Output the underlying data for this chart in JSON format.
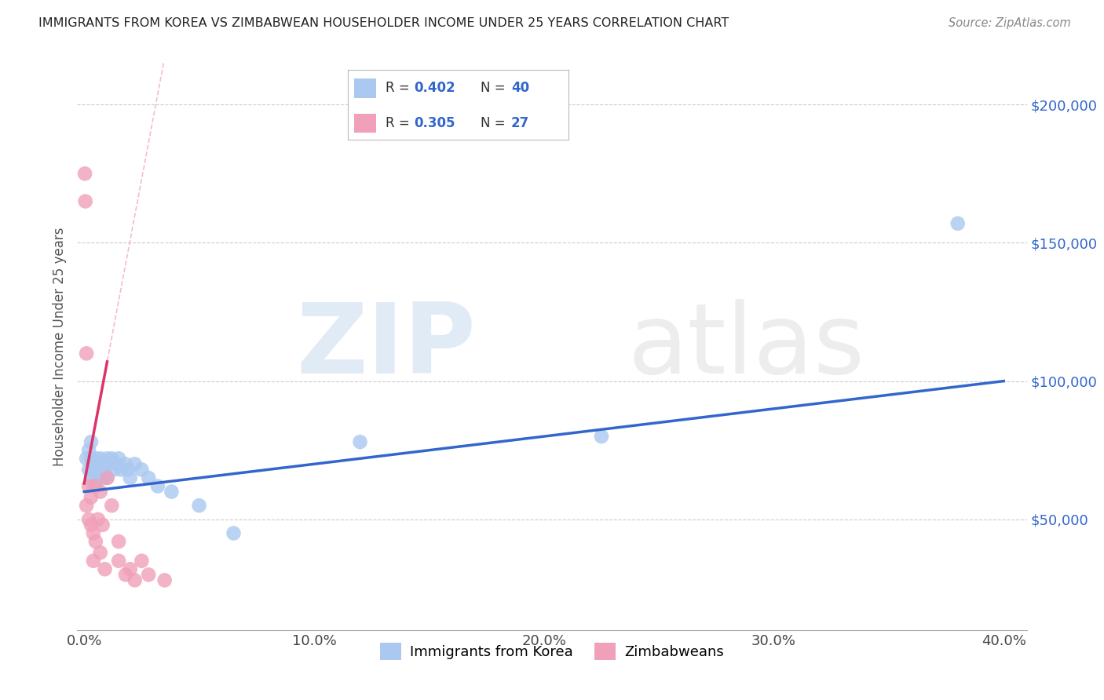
{
  "title": "IMMIGRANTS FROM KOREA VS ZIMBABWEAN HOUSEHOLDER INCOME UNDER 25 YEARS CORRELATION CHART",
  "source": "Source: ZipAtlas.com",
  "ylabel": "Householder Income Under 25 years",
  "xlabel_ticks": [
    "0.0%",
    "10.0%",
    "20.0%",
    "30.0%",
    "40.0%"
  ],
  "xlabel_tick_vals": [
    0.0,
    0.1,
    0.2,
    0.3,
    0.4
  ],
  "ylabel_ticks": [
    "$50,000",
    "$100,000",
    "$150,000",
    "$200,000"
  ],
  "ylabel_tick_vals": [
    50000,
    100000,
    150000,
    200000
  ],
  "xlim": [
    -0.003,
    0.41
  ],
  "ylim": [
    10000,
    215000
  ],
  "korea_R": 0.402,
  "korea_N": 40,
  "zim_R": 0.305,
  "zim_N": 27,
  "korea_color": "#aac8f0",
  "korea_line_color": "#3366cc",
  "zim_color": "#f0a0b8",
  "zim_line_color": "#dd3366",
  "korea_scatter_x": [
    0.001,
    0.002,
    0.002,
    0.003,
    0.003,
    0.003,
    0.004,
    0.004,
    0.004,
    0.005,
    0.005,
    0.005,
    0.006,
    0.006,
    0.007,
    0.007,
    0.008,
    0.008,
    0.009,
    0.01,
    0.01,
    0.011,
    0.012,
    0.013,
    0.014,
    0.015,
    0.016,
    0.018,
    0.019,
    0.02,
    0.022,
    0.025,
    0.028,
    0.032,
    0.038,
    0.05,
    0.065,
    0.12,
    0.225,
    0.38
  ],
  "korea_scatter_y": [
    72000,
    75000,
    68000,
    78000,
    72000,
    65000,
    70000,
    68000,
    62000,
    72000,
    68000,
    65000,
    70000,
    65000,
    72000,
    68000,
    70000,
    65000,
    68000,
    72000,
    65000,
    70000,
    72000,
    68000,
    70000,
    72000,
    68000,
    70000,
    68000,
    65000,
    70000,
    68000,
    65000,
    62000,
    60000,
    55000,
    45000,
    78000,
    80000,
    157000
  ],
  "zim_scatter_x": [
    0.0003,
    0.0005,
    0.001,
    0.001,
    0.002,
    0.002,
    0.003,
    0.003,
    0.004,
    0.004,
    0.005,
    0.005,
    0.006,
    0.007,
    0.007,
    0.008,
    0.009,
    0.01,
    0.012,
    0.015,
    0.015,
    0.018,
    0.02,
    0.022,
    0.025,
    0.028,
    0.035
  ],
  "zim_scatter_y": [
    175000,
    165000,
    110000,
    55000,
    62000,
    50000,
    58000,
    48000,
    45000,
    35000,
    62000,
    42000,
    50000,
    38000,
    60000,
    48000,
    32000,
    65000,
    55000,
    42000,
    35000,
    30000,
    32000,
    28000,
    35000,
    30000,
    28000
  ],
  "legend_items": [
    "Immigrants from Korea",
    "Zimbabweans"
  ],
  "watermark_zip": "ZIP",
  "watermark_atlas": "atlas"
}
